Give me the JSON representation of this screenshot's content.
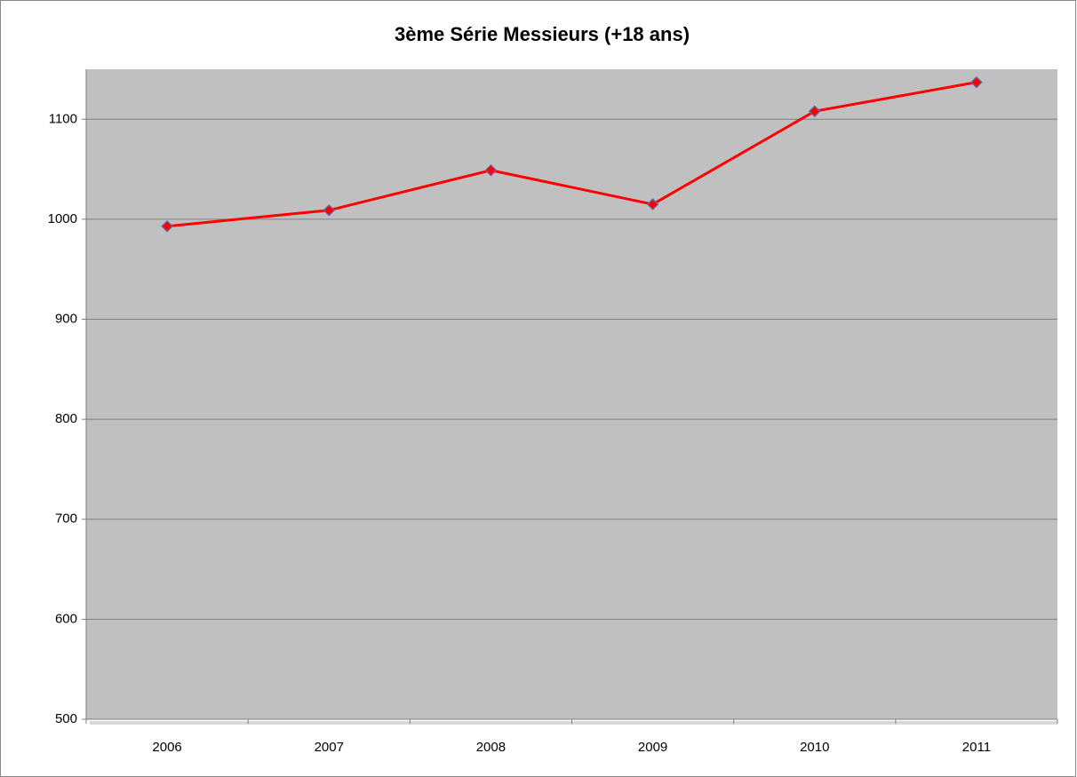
{
  "chart_data": {
    "type": "line",
    "title": "3ème Série Messieurs (+18 ans)",
    "categories": [
      "2006",
      "2007",
      "2008",
      "2009",
      "2010",
      "2011"
    ],
    "series": [
      {
        "name": "3ème Série Messieurs (+18 ans)",
        "color": "#ff0000",
        "marker_color": "#ff0000",
        "values": [
          993,
          1009,
          1049,
          1015,
          1108,
          1137
        ]
      }
    ],
    "ylim": [
      500,
      1150
    ],
    "yticks": [
      500,
      600,
      700,
      800,
      900,
      1000,
      1100
    ],
    "grid": true
  }
}
